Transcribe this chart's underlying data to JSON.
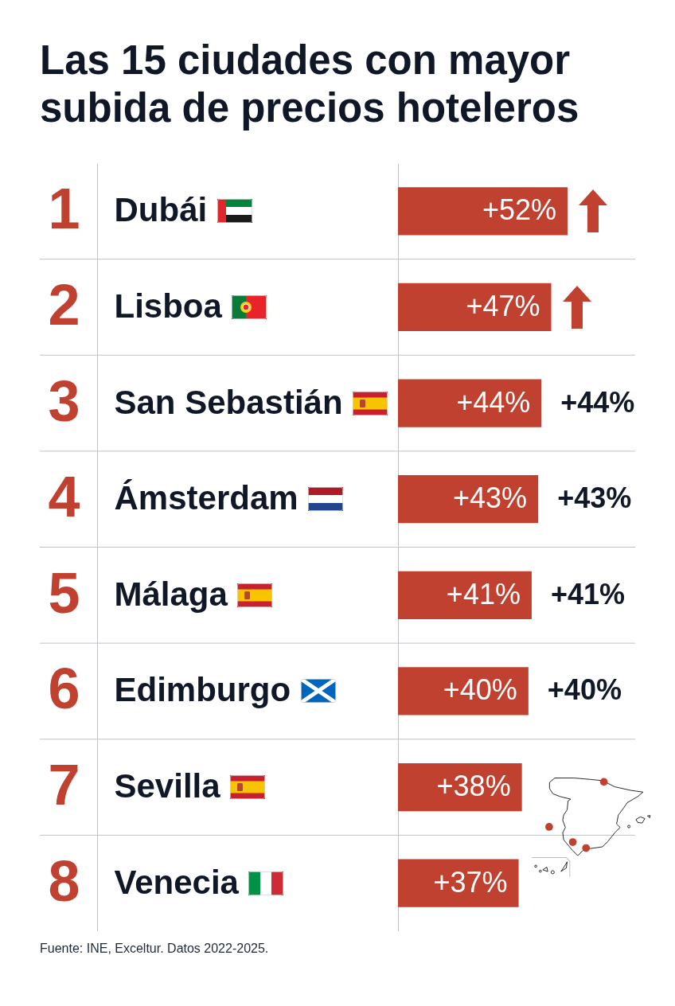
{
  "chart_data": {
    "type": "bar",
    "orientation": "horizontal",
    "title": "Las 15 ciudades con mayor subida de precios hoteleros",
    "categories": [
      "Dubái",
      "Lisboa",
      "San Sebastián",
      "Ámsterdam",
      "Málaga",
      "Edimburgo",
      "Sevilla",
      "Venecia"
    ],
    "y2_categories": [
      "1",
      "2",
      "3",
      "4",
      "5",
      "6",
      "7",
      "8"
    ],
    "values": [
      52,
      47,
      44,
      43,
      41,
      40,
      38,
      37
    ],
    "value_labels": [
      "+52%",
      "+47%",
      "+44%",
      "+43%",
      "+41%",
      "+40%",
      "+38%",
      "+37%"
    ],
    "color": "#c0412f",
    "grid": "y",
    "annotations": [
      {
        "text": "+44%",
        "x": 44,
        "y": "San Sebastián"
      },
      {
        "text": "+43%",
        "x": 43,
        "y": "Ámsterdam"
      },
      {
        "text": "+41%",
        "x": 41,
        "y": "Málaga"
      },
      {
        "text": "+40%",
        "x": 40,
        "y": "Edimburgo"
      },
      "Fuente: INE, Exceltur. Datos 2022-2025."
    ]
  }
}
